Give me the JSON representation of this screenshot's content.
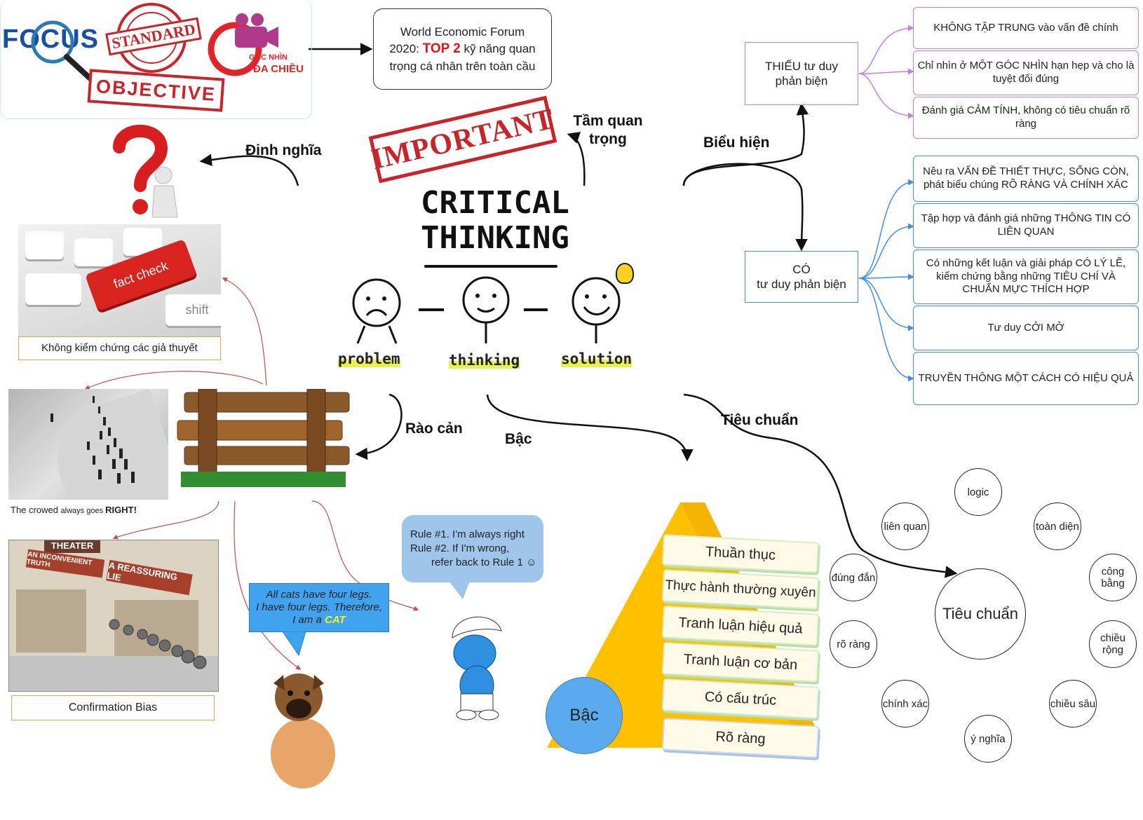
{
  "center": {
    "title_line1": "CRITICAL",
    "title_line2": "THINKING",
    "stage1": "problem",
    "stage2": "thinking",
    "stage3": "solution"
  },
  "top_logos": {
    "focus": "FOCUS",
    "standard": "STANDARD",
    "objective": "OBJECTIVE",
    "goc_nhin_1": "GÓC NHÌN",
    "goc_nhin_2": "ĐA CHIỀU"
  },
  "stamp": "IMPORTANT",
  "wef": {
    "line1": "World Economic Forum",
    "prefix": "2020: ",
    "highlight": "TOP 2",
    "line2_rest": " kỹ năng quan",
    "line3": "trọng cá nhân trên toàn cầu"
  },
  "branches": {
    "dinh_nghia": "Định nghĩa",
    "tam_quan_trong": "Tầm quan trọng",
    "bieu_hien": "Biểu hiện",
    "rao_can": "Rào cản",
    "bac": "Bậc",
    "tieu_chuan": "Tiêu chuẩn"
  },
  "thieu": {
    "label": "THIẾU tư duy phản biện",
    "items": [
      "KHÔNG TẬP TRUNG vào vấn đề chính",
      "Chỉ nhìn ở MỘT GÓC NHÌN hạn hẹp và cho là tuyệt đối đúng",
      "Đánh giá CẢM TÍNH, không có tiêu chuẩn rõ ràng"
    ]
  },
  "co": {
    "label_line1": "CÓ",
    "label_line2": "tư duy phản biện",
    "items": [
      "Nêu ra VẤN ĐỀ THIẾT THỰC, SỐNG CÒN, phát biểu chúng RÕ RÀNG VÀ CHÍNH XÁC",
      "Tập hợp và đánh giá những THÔNG TIN CÓ LIÊN QUAN",
      "Có những kết luận và giải pháp CÓ LÝ LẼ, kiểm chứng bằng những TIÊU CHÍ VÀ CHUẨN MỰC THÍCH HỢP",
      "Tư duy CỞI MỞ",
      "TRUYỀN THÔNG MỘT CÁCH CÓ HIỆU QUẢ"
    ]
  },
  "barriers": {
    "fact_key1": "fact check",
    "fact_key2": "shift",
    "fact_caption": "Không kiểm chứng các giả thuyết",
    "crowd_caption_pre": "The crowed ",
    "crowd_caption_mid": "always goes ",
    "crowd_caption_bold": "RIGHT!",
    "theater_sign1": "AN INCONVENIENT TRUTH",
    "theater_sign2": "A REASSURING LIE",
    "theater_top": "THEATER",
    "confirmation": "Confirmation Bias",
    "cats_line1": "All cats have four legs.",
    "cats_line2": "I have four legs. Therefore,",
    "cats_line3_pre": "I am a ",
    "cats_line3_hl": "CAT",
    "rule_line1": "Rule #1. I'm always right",
    "rule_line2": "Rule #2. If I'm wrong,",
    "rule_line3": "refer back to Rule 1 ☺"
  },
  "pyramid": {
    "label": "Bậc",
    "tiers": [
      "Thuần thục",
      "Thực hành thường xuyên",
      "Tranh luận hiệu quả",
      "Tranh luận cơ bản",
      "Có cấu trúc",
      "Rõ ràng"
    ]
  },
  "standards": {
    "center": "Tiêu chuẩn",
    "items": [
      "logic",
      "liên quan",
      "toàn diện",
      "đúng đắn",
      "công bằng",
      "rõ ràng",
      "chiều rộng",
      "chính xác",
      "chiều sâu",
      "ý nghĩa"
    ]
  },
  "colors": {
    "purple": "#c27ee8",
    "blue": "#3f8fe6",
    "orange": "#f0a24a",
    "stamp_red": "#c8242a",
    "barrier_line": "#c0504d",
    "pyramid": "#ffc000"
  }
}
